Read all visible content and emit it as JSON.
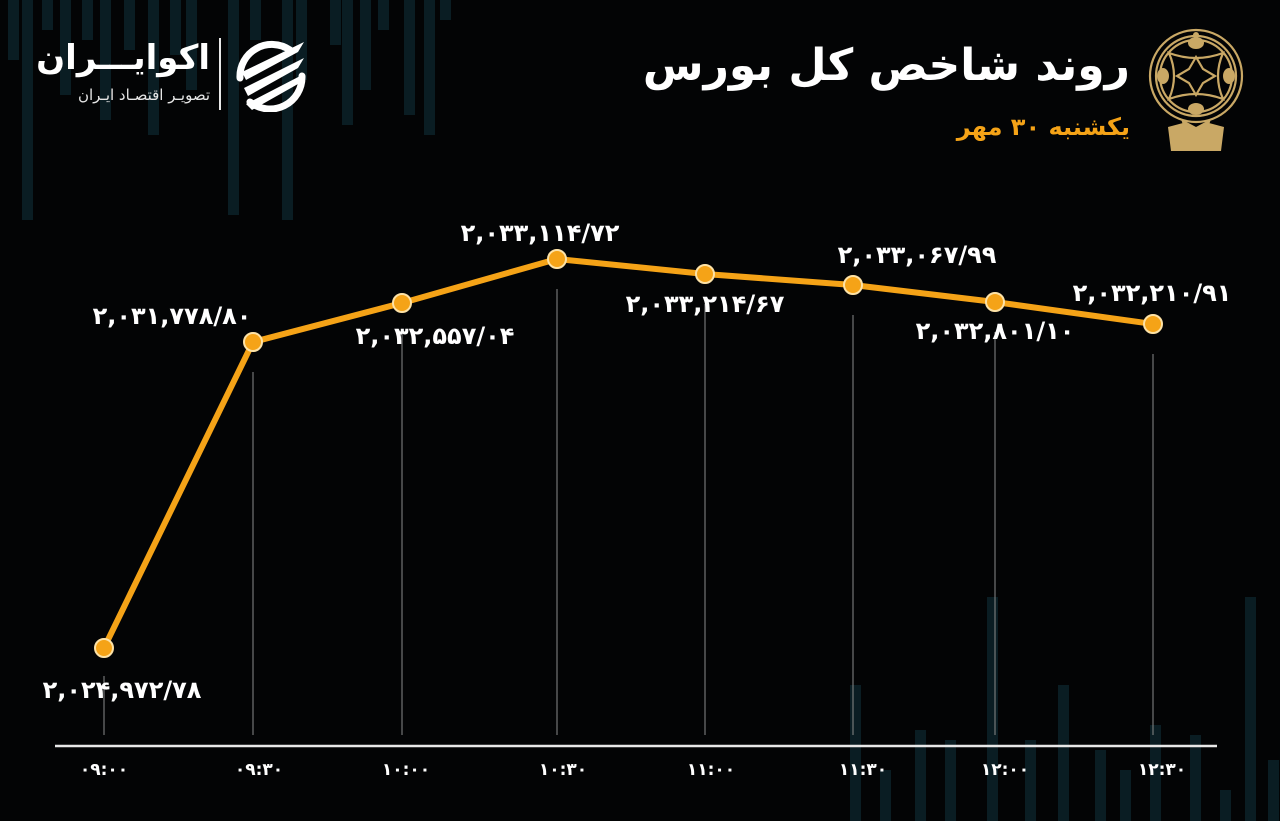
{
  "header": {
    "title": "روند شاخص کل بورس",
    "subtitle": "یکشنبه ۳۰ مهر",
    "emblem": "tehran-stock-exchange-emblem-icon"
  },
  "brand": {
    "name": "اکوایـــران",
    "tagline": "تصویـر اقتصـاد ایـران",
    "logo": "ecoiran-logo-icon"
  },
  "colors": {
    "background": "#030405",
    "line": "#f5a317",
    "accent_text": "#f5a317",
    "text": "#ffffff",
    "grid": "#8a8a8a",
    "deco_bars": "#0c2229"
  },
  "chart_data": {
    "type": "line",
    "title": "روند شاخص کل بورس",
    "subtitle": "یکشنبه ۳۰ مهر",
    "xlabel": "",
    "ylabel": "",
    "categories": [
      "09:00",
      "09:30",
      "10:00",
      "10:30",
      "11:00",
      "11:30",
      "12:00",
      "12:30"
    ],
    "tick_labels": [
      "۰۹:۰۰",
      "۰۹:۳۰",
      "۱۰:۰۰",
      "۱۰:۳۰",
      "۱۱:۰۰",
      "۱۱:۳۰",
      "۱۲:۰۰",
      "۱۲:۳۰"
    ],
    "values": [
      2024972.78,
      2031778.8,
      2032557.04,
      2033114.72,
      2033214.67,
      2033067.99,
      2032801.1,
      2032210.91
    ],
    "data_labels": [
      "۲,۰۲۴,۹۷۲/۷۸",
      "۲,۰۳۱,۷۷۸/۸۰",
      "۲,۰۳۲,۵۵۷/۰۴",
      "۲,۰۳۳,۱۱۴/۷۲",
      "۲,۰۳۳,۲۱۴/۶۷",
      "۲,۰۳۳,۰۶۷/۹۹",
      "۲,۰۳۲,۸۰۱/۱۰",
      "۲,۰۳۲,۲۱۰/۹۱"
    ],
    "grid": false,
    "legend": "none",
    "series": [
      {
        "name": "شاخص کل",
        "values": [
          2024972.78,
          2031778.8,
          2032557.04,
          2033114.72,
          2033214.67,
          2033067.99,
          2032801.1,
          2032210.91
        ]
      }
    ]
  }
}
